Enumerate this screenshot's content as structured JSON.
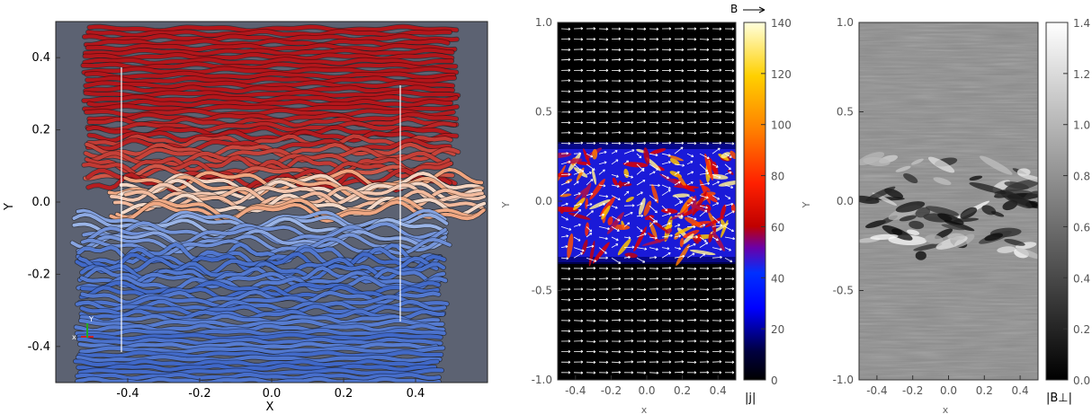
{
  "chart_data": [
    {
      "type": "other",
      "panel": "field-line tubes",
      "xlabel": "X",
      "ylabel": "Y",
      "xticks": [
        "-0.4",
        "-0.2",
        "0.0",
        "0.2",
        "0.4"
      ],
      "yticks": [
        "0.4",
        "0.2",
        "0.0",
        "-0.2",
        "-0.4"
      ],
      "xlim": [
        -0.6,
        0.6
      ],
      "ylim": [
        -0.5,
        0.5
      ],
      "axes_triad_labels": [
        "x",
        "Y"
      ],
      "colors": {
        "background": "#5c6272",
        "upper": "#b3161b",
        "middle": "#f0a37c",
        "lower": "#3f67c8"
      }
    },
    {
      "type": "heatmap",
      "panel": "current density with field vectors",
      "xlabel": "x",
      "ylabel": "Y",
      "xticks": [
        "-0.4",
        "-0.2",
        "0.0",
        "0.2",
        "0.4"
      ],
      "yticks": [
        "1.0",
        "0.5",
        "0.0",
        "-0.5",
        "-1.0"
      ],
      "xlim": [
        -0.5,
        0.5
      ],
      "ylim": [
        -1.0,
        1.0
      ],
      "colorbar": {
        "ticks": [
          "140",
          "120",
          "100",
          "80",
          "60",
          "40",
          "20",
          "0"
        ],
        "range": [
          0,
          140
        ],
        "label": "|j|",
        "colormap": "rainbow"
      },
      "vector_legend": "B",
      "turbulent_layer_y": [
        -0.33,
        0.33
      ]
    },
    {
      "type": "heatmap",
      "panel": "perpendicular field magnitude",
      "xlabel": "x",
      "ylabel": "Y",
      "xticks": [
        "-0.4",
        "-0.2",
        "0.0",
        "0.2",
        "0.4"
      ],
      "yticks": [
        "1.0",
        "0.5",
        "0.0",
        "-0.5",
        "-1.0"
      ],
      "xlim": [
        -0.5,
        0.5
      ],
      "ylim": [
        -1.0,
        1.0
      ],
      "colorbar": {
        "ticks": [
          "1.4",
          "1.2",
          "1.0",
          "0.8",
          "0.6",
          "0.4",
          "0.2",
          "0.0"
        ],
        "range": [
          0,
          1.4
        ],
        "label": "|B⊥|",
        "colormap": "grayscale"
      }
    }
  ]
}
